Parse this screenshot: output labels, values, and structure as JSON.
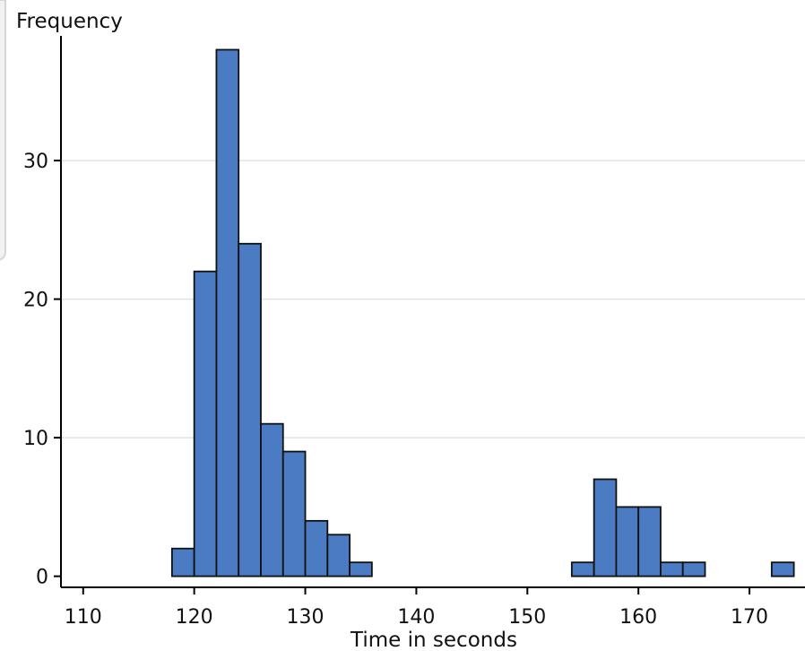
{
  "chart_data": {
    "type": "bar",
    "subtype": "histogram",
    "ylabel": "Frequency",
    "xlabel": "Time in seconds",
    "bin_width": 2,
    "bins": [
      {
        "start": 118,
        "end": 120,
        "count": 2
      },
      {
        "start": 120,
        "end": 122,
        "count": 22
      },
      {
        "start": 122,
        "end": 124,
        "count": 38
      },
      {
        "start": 124,
        "end": 126,
        "count": 24
      },
      {
        "start": 126,
        "end": 128,
        "count": 11
      },
      {
        "start": 128,
        "end": 130,
        "count": 9
      },
      {
        "start": 130,
        "end": 132,
        "count": 4
      },
      {
        "start": 132,
        "end": 134,
        "count": 3
      },
      {
        "start": 134,
        "end": 136,
        "count": 1
      },
      {
        "start": 154,
        "end": 156,
        "count": 1
      },
      {
        "start": 156,
        "end": 158,
        "count": 7
      },
      {
        "start": 158,
        "end": 160,
        "count": 5
      },
      {
        "start": 160,
        "end": 162,
        "count": 5
      },
      {
        "start": 162,
        "end": 164,
        "count": 1
      },
      {
        "start": 164,
        "end": 166,
        "count": 1
      },
      {
        "start": 172,
        "end": 174,
        "count": 1
      }
    ],
    "xlim": [
      108,
      175
    ],
    "ylim": [
      -0.8,
      39
    ],
    "xticks": [
      110,
      120,
      130,
      140,
      150,
      160,
      170
    ],
    "yticks": [
      0,
      10,
      20,
      30
    ],
    "grid": "horizontal",
    "bar_color": "#4a7bc3",
    "bar_edge_color": "#111111"
  }
}
